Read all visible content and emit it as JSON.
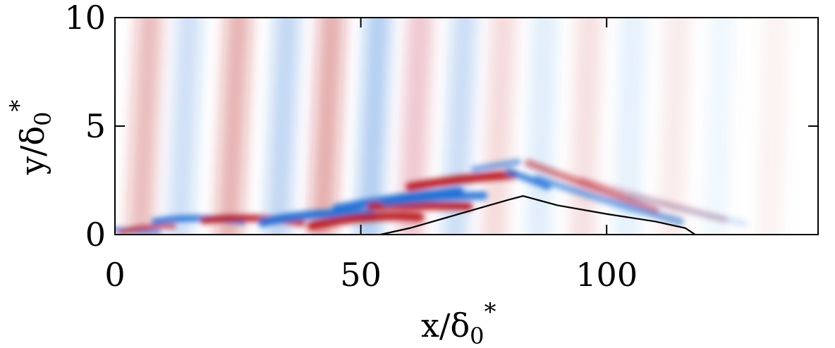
{
  "chart_data": {
    "type": "heatmap",
    "title": "",
    "xlabel": "x/δ",
    "xlabel_sub": "0",
    "xlabel_sup": "*",
    "ylabel": "y/δ",
    "ylabel_sub": "0",
    "ylabel_sup": "*",
    "xlim": [
      0,
      143
    ],
    "ylim": [
      0,
      10
    ],
    "x_ticks": [
      {
        "value": 0,
        "label": "0"
      },
      {
        "value": 50,
        "label": "50"
      },
      {
        "value": 100,
        "label": "100"
      }
    ],
    "y_ticks": [
      {
        "value": 0,
        "label": "0"
      },
      {
        "value": 5,
        "label": "5"
      },
      {
        "value": 10,
        "label": "10"
      }
    ],
    "grid": false,
    "colormap": {
      "negative": "#1f6fd6",
      "zero": "#ffffff",
      "positive": "#b8141e"
    },
    "wall_contour": {
      "x": [
        54,
        60,
        70,
        80,
        83,
        90,
        100,
        110,
        116,
        118
      ],
      "y": [
        0,
        0.3,
        0.95,
        1.6,
        1.78,
        1.35,
        0.95,
        0.6,
        0.3,
        0
      ]
    },
    "field_description": "alternating positive and negative disturbance bands: near-vertical weak bands in the free stream, strong inclined streaks near the wall that rise along the bump up to x≈83 and then descend obliquely behind it"
  }
}
